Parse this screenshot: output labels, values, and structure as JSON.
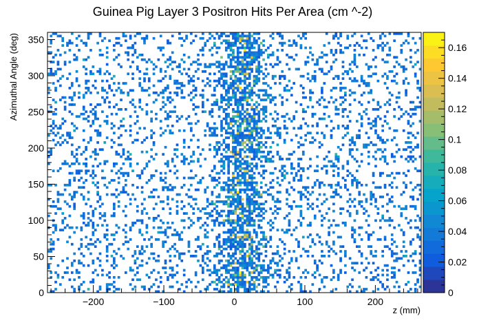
{
  "chart_data": {
    "type": "heatmap",
    "title": "Guinea Pig Layer 3 Positron Hits Per Area (cm ^-2)",
    "xlabel": "z (mm)",
    "ylabel": "Azimuthal Angle (deg)",
    "xlim": [
      -265,
      265
    ],
    "ylim": [
      0,
      360
    ],
    "xticks": [
      "−200",
      "−100",
      "0",
      "100",
      "200"
    ],
    "xtick_values": [
      -200,
      -100,
      0,
      100,
      200
    ],
    "yticks": [
      "0",
      "50",
      "100",
      "150",
      "200",
      "250",
      "300",
      "350"
    ],
    "ytick_values": [
      0,
      50,
      100,
      150,
      200,
      250,
      300,
      350
    ],
    "zlim": [
      0,
      0.17
    ],
    "zticks": [
      "0",
      "0.02",
      "0.04",
      "0.06",
      "0.08",
      "0.1",
      "0.12",
      "0.14",
      "0.16"
    ],
    "ztick_values": [
      0,
      0.02,
      0.04,
      0.06,
      0.08,
      0.1,
      0.12,
      0.14,
      0.16
    ],
    "colorscale": [
      "#352a87",
      "#0f5cdd",
      "#1481d6",
      "#06a4ca",
      "#2eb7a4",
      "#87bf77",
      "#d1bb59",
      "#fec832",
      "#f9fb0e"
    ],
    "bins": {
      "nx": 160,
      "ny": 110
    },
    "density_profile": {
      "baseline_occupancy": 0.18,
      "peak_occupancy": 0.72,
      "peak_z": 10,
      "peak_width_mm": 30,
      "typical_value": 0.035,
      "peak_value": 0.16
    },
    "grid": false,
    "legend": "colorbar-right"
  }
}
